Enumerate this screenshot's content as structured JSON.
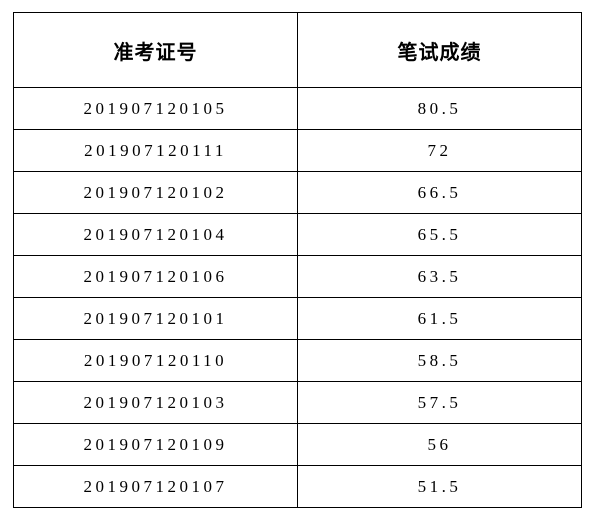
{
  "table": {
    "headers": [
      "准考证号",
      "笔试成绩"
    ],
    "rows": [
      [
        "201907120105",
        "80.5"
      ],
      [
        "201907120111",
        "72"
      ],
      [
        "201907120102",
        "66.5"
      ],
      [
        "201907120104",
        "65.5"
      ],
      [
        "201907120106",
        "63.5"
      ],
      [
        "201907120101",
        "61.5"
      ],
      [
        "201907120110",
        "58.5"
      ],
      [
        "201907120103",
        "57.5"
      ],
      [
        "201907120109",
        "56"
      ],
      [
        "201907120107",
        "51.5"
      ]
    ]
  }
}
